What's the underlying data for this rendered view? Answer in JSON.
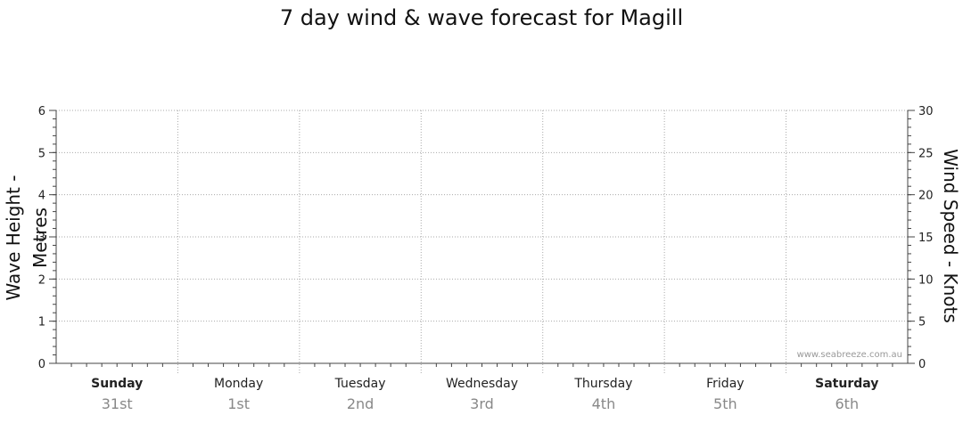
{
  "chart_data": {
    "type": "line",
    "title": "7 day wind & wave forecast for Magill",
    "y_left": {
      "label": "Wave Height - Metres",
      "range": [
        0,
        6
      ],
      "ticks": [
        "0",
        "1",
        "2",
        "3",
        "4",
        "5",
        "6"
      ]
    },
    "y_right": {
      "label": "Wind Speed - Knots",
      "range": [
        0,
        30
      ],
      "ticks": [
        "0",
        "5",
        "10",
        "15",
        "20",
        "25",
        "30"
      ]
    },
    "days": [
      {
        "name": "Sunday",
        "date": "31st",
        "bold": true
      },
      {
        "name": "Monday",
        "date": "1st",
        "bold": false
      },
      {
        "name": "Tuesday",
        "date": "2nd",
        "bold": false
      },
      {
        "name": "Wednesday",
        "date": "3rd",
        "bold": false
      },
      {
        "name": "Thursday",
        "date": "4th",
        "bold": false
      },
      {
        "name": "Friday",
        "date": "5th",
        "bold": false
      },
      {
        "name": "Saturday",
        "date": "6th",
        "bold": true
      }
    ],
    "series": [],
    "grid": true,
    "watermark": "www.seabreeze.com.au"
  }
}
